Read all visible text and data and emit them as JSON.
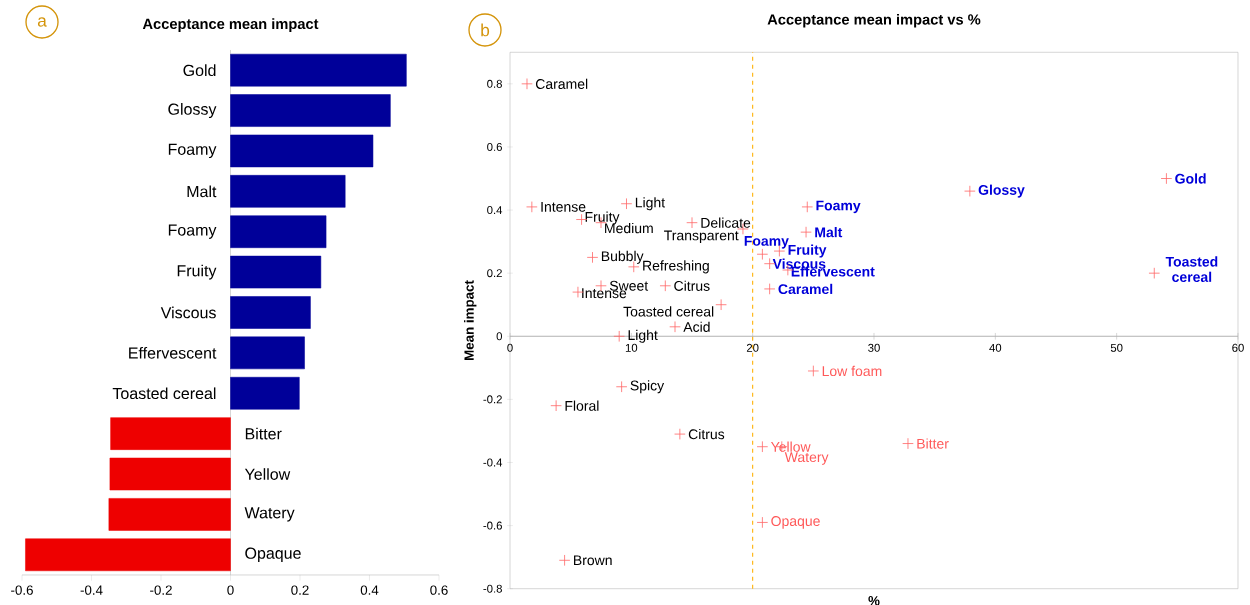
{
  "chart_data": [
    {
      "type": "bar",
      "orientation": "horizontal",
      "title": "Acceptance mean impact",
      "annotations": [
        "a"
      ],
      "categories": [
        "Gold",
        "Glossy",
        "Foamy",
        "Malt",
        "Foamy",
        "Fruity",
        "Viscous",
        "Effervescent",
        "Toasted cereal",
        "Bitter",
        "Yellow",
        "Watery",
        "Opaque"
      ],
      "values": [
        0.506,
        0.46,
        0.41,
        0.33,
        0.275,
        0.26,
        0.23,
        0.213,
        0.198,
        -0.345,
        -0.347,
        -0.35,
        -0.59
      ],
      "colors": [
        "#000099",
        "#000099",
        "#000099",
        "#000099",
        "#000099",
        "#000099",
        "#000099",
        "#000099",
        "#000099",
        "#ee0000",
        "#ee0000",
        "#ee0000",
        "#ee0000"
      ],
      "xlim": [
        -0.6,
        0.6
      ],
      "xticks": [
        -0.6,
        -0.4,
        -0.2,
        0,
        0.2,
        0.4,
        0.6
      ]
    },
    {
      "type": "scatter",
      "title": "Acceptance mean impact vs %",
      "xlabel": "%",
      "ylabel": "Mean impact",
      "annotations": [
        "b"
      ],
      "marker": "cross",
      "xlim": [
        0,
        60
      ],
      "ylim": [
        -0.8,
        0.9
      ],
      "xticks": [
        0,
        10,
        20,
        30,
        40,
        50,
        60
      ],
      "yticks": [
        -0.8,
        -0.6,
        -0.4,
        -0.2,
        0,
        0.2,
        0.4,
        0.6,
        0.8
      ],
      "series": [
        {
          "color": "#ff6666",
          "x": [
            1.4,
            1.8,
            9.6,
            5.9,
            7.5,
            15.0,
            19.2,
            6.8,
            10.2,
            7.5,
            5.6,
            12.8,
            17.4,
            13.6,
            9.0,
            9.2,
            3.8,
            14.0,
            4.5
          ],
          "values": [
            0.8,
            0.41,
            0.42,
            0.37,
            0.36,
            0.36,
            0.34,
            0.25,
            0.22,
            0.16,
            0.14,
            0.16,
            0.1,
            0.03,
            0.0,
            -0.16,
            -0.22,
            -0.31,
            -0.71
          ],
          "value_labels": [
            "Caramel",
            "Intense",
            "Light",
            "Fruity",
            "Medium",
            "Delicate",
            "Transparent",
            "Bubbly",
            "Refreshing",
            "Sweet",
            "Intense",
            "Citrus",
            "Toasted cereal",
            "Acid",
            "Light",
            "Spicy",
            "Floral",
            "Citrus",
            "Brown"
          ]
        },
        {
          "color": "#ff6666",
          "x": [
            24.5,
            24.4,
            20.8,
            22.2,
            21.4,
            22.9,
            21.4,
            37.9,
            54.1,
            53.1
          ],
          "values": [
            0.41,
            0.33,
            0.26,
            0.27,
            0.23,
            0.21,
            0.15,
            0.46,
            0.5,
            0.2
          ],
          "value_labels": [
            "Foamy",
            "Malt",
            "Foamy",
            "Fruity",
            "Viscous",
            "Effervescent",
            "Caramel",
            "Glossy",
            "Gold",
            "Toasted cereal"
          ]
        },
        {
          "color": "#ff6666",
          "x": [
            25.0,
            20.8,
            22.4,
            32.8,
            20.8
          ],
          "values": [
            -0.11,
            -0.35,
            -0.35,
            -0.34,
            -0.59
          ],
          "value_labels": [
            "Low foam",
            "Yellow",
            "Watery",
            "Bitter",
            "Opaque"
          ]
        }
      ],
      "ref_lines": [
        {
          "axis": "x",
          "value": 20,
          "color": "#ffb000",
          "line_style": "dashed"
        }
      ]
    }
  ]
}
